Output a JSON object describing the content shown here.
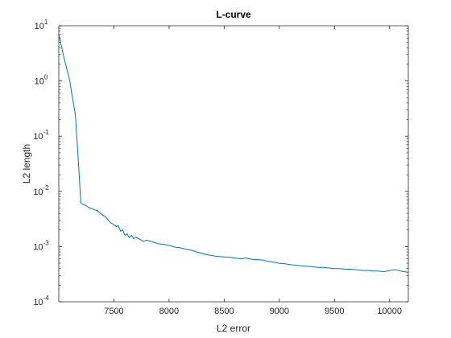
{
  "chart_data": {
    "type": "line",
    "title": "L-curve",
    "xlabel": "L2 error",
    "ylabel": "L2 length",
    "xlim": [
      7000,
      10170
    ],
    "ylim": [
      0.0001,
      10
    ],
    "yscale": "log",
    "grid": false,
    "x_ticks": [
      7500,
      8000,
      8500,
      9000,
      9500,
      10000
    ],
    "x_tick_labels": [
      "7500",
      "8000",
      "8500",
      "9000",
      "9500",
      "10000"
    ],
    "y_ticks": [
      {
        "value": 10,
        "base": "10",
        "exp": "1"
      },
      {
        "value": 1,
        "base": "10",
        "exp": "0"
      },
      {
        "value": 0.1,
        "base": "10",
        "exp": "-1"
      },
      {
        "value": 0.01,
        "base": "10",
        "exp": "-2"
      },
      {
        "value": 0.001,
        "base": "10",
        "exp": "-3"
      },
      {
        "value": 0.0001,
        "base": "10",
        "exp": "-4"
      }
    ],
    "line_color": "#0072BD",
    "series": [
      {
        "x": [
          7000,
          7050,
          7100,
          7120,
          7150,
          7170,
          7185,
          7200,
          7220,
          7250,
          7280,
          7300,
          7330,
          7350,
          7380,
          7400,
          7420,
          7450,
          7470,
          7500,
          7520,
          7540,
          7560,
          7580,
          7600,
          7620,
          7640,
          7660,
          7680,
          7700,
          7720,
          7740,
          7760,
          7800,
          7850,
          7900,
          7950,
          8000,
          8050,
          8100,
          8150,
          8200,
          8250,
          8300,
          8350,
          8400,
          8450,
          8500,
          8550,
          8600,
          8650,
          8700,
          8750,
          8800,
          8850,
          8900,
          8950,
          9000,
          9050,
          9100,
          9150,
          9200,
          9250,
          9300,
          9350,
          9400,
          9450,
          9500,
          9550,
          9600,
          9650,
          9700,
          9750,
          9800,
          9850,
          9900,
          9950,
          10000,
          10050,
          10100,
          10170
        ],
        "y": [
          7,
          2.5,
          1.0,
          0.55,
          0.25,
          0.06,
          0.02,
          0.0062,
          0.0058,
          0.0055,
          0.005,
          0.0049,
          0.0046,
          0.0045,
          0.004,
          0.0037,
          0.0035,
          0.003,
          0.0027,
          0.0025,
          0.0023,
          0.0024,
          0.0019,
          0.002,
          0.0016,
          0.0017,
          0.00145,
          0.0016,
          0.00138,
          0.0015,
          0.0014,
          0.00135,
          0.00125,
          0.0013,
          0.00122,
          0.00113,
          0.0011,
          0.00105,
          0.00098,
          0.00095,
          0.0009,
          0.00086,
          0.0008,
          0.00075,
          0.00071,
          0.00068,
          0.00066,
          0.00065,
          0.00064,
          0.00062,
          0.0006,
          0.00062,
          0.00059,
          0.00058,
          0.00057,
          0.00054,
          0.00052,
          0.0005,
          0.00049,
          0.00047,
          0.00046,
          0.00045,
          0.00044,
          0.00043,
          0.00042,
          0.00042,
          0.00041,
          0.0004,
          0.0004,
          0.00039,
          0.00039,
          0.00038,
          0.00037,
          0.00037,
          0.00036,
          0.00036,
          0.00035,
          0.00037,
          0.00038,
          0.00036,
          0.00034
        ]
      }
    ]
  }
}
